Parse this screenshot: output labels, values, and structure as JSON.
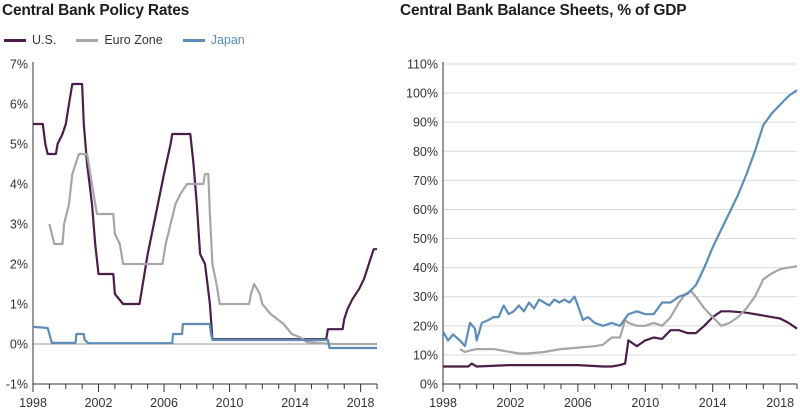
{
  "chart_data": [
    {
      "type": "line",
      "title": "Central Bank Policy Rates",
      "xlabel": "",
      "ylabel": "",
      "xlim": [
        1998,
        2019
      ],
      "ylim": [
        -1,
        7
      ],
      "yticks": [
        "7%",
        "6%",
        "5%",
        "4%",
        "3%",
        "2%",
        "1%",
        "0%",
        "-1%"
      ],
      "xticks": [
        "1998",
        "2002",
        "2006",
        "2010",
        "2014",
        "2018"
      ],
      "grid": false,
      "legend_position": "top-left",
      "series": [
        {
          "name": "U.S.",
          "color": "#4a1e48",
          "points": [
            [
              1998,
              5.5
            ],
            [
              1998.6,
              5.5
            ],
            [
              1998.75,
              5.0
            ],
            [
              1998.9,
              4.75
            ],
            [
              1999.4,
              4.75
            ],
            [
              1999.5,
              5.0
            ],
            [
              1999.8,
              5.25
            ],
            [
              2000.0,
              5.5
            ],
            [
              2000.2,
              6.0
            ],
            [
              2000.4,
              6.5
            ],
            [
              2001.0,
              6.5
            ],
            [
              2001.1,
              5.5
            ],
            [
              2001.3,
              4.5
            ],
            [
              2001.6,
              3.5
            ],
            [
              2001.8,
              2.5
            ],
            [
              2002.0,
              1.75
            ],
            [
              2002.9,
              1.75
            ],
            [
              2003.0,
              1.25
            ],
            [
              2003.5,
              1.0
            ],
            [
              2004.5,
              1.0
            ],
            [
              2004.7,
              1.5
            ],
            [
              2005.0,
              2.25
            ],
            [
              2005.5,
              3.25
            ],
            [
              2006.0,
              4.25
            ],
            [
              2006.4,
              5.0
            ],
            [
              2006.5,
              5.25
            ],
            [
              2007.6,
              5.25
            ],
            [
              2007.8,
              4.5
            ],
            [
              2008.0,
              3.5
            ],
            [
              2008.2,
              2.25
            ],
            [
              2008.5,
              2.0
            ],
            [
              2008.8,
              1.0
            ],
            [
              2008.95,
              0.12
            ],
            [
              2015.9,
              0.12
            ],
            [
              2016.0,
              0.37
            ],
            [
              2016.9,
              0.37
            ],
            [
              2017.0,
              0.62
            ],
            [
              2017.2,
              0.87
            ],
            [
              2017.5,
              1.12
            ],
            [
              2017.9,
              1.37
            ],
            [
              2018.2,
              1.62
            ],
            [
              2018.4,
              1.87
            ],
            [
              2018.6,
              2.12
            ],
            [
              2018.8,
              2.37
            ],
            [
              2019.0,
              2.37
            ]
          ]
        },
        {
          "name": "Euro Zone",
          "color": "#a6a6a6",
          "points": [
            [
              1999.0,
              3.0
            ],
            [
              1999.3,
              2.5
            ],
            [
              1999.8,
              2.5
            ],
            [
              1999.9,
              3.0
            ],
            [
              2000.2,
              3.5
            ],
            [
              2000.4,
              4.25
            ],
            [
              2000.6,
              4.5
            ],
            [
              2000.8,
              4.75
            ],
            [
              2001.3,
              4.75
            ],
            [
              2001.5,
              4.25
            ],
            [
              2001.7,
              3.75
            ],
            [
              2001.9,
              3.25
            ],
            [
              2002.9,
              3.25
            ],
            [
              2003.0,
              2.75
            ],
            [
              2003.3,
              2.5
            ],
            [
              2003.5,
              2.0
            ],
            [
              2005.9,
              2.0
            ],
            [
              2006.1,
              2.5
            ],
            [
              2006.4,
              3.0
            ],
            [
              2006.7,
              3.5
            ],
            [
              2007.0,
              3.75
            ],
            [
              2007.4,
              4.0
            ],
            [
              2008.4,
              4.0
            ],
            [
              2008.5,
              4.25
            ],
            [
              2008.7,
              4.25
            ],
            [
              2008.8,
              3.25
            ],
            [
              2008.95,
              2.0
            ],
            [
              2009.2,
              1.5
            ],
            [
              2009.4,
              1.0
            ],
            [
              2011.2,
              1.0
            ],
            [
              2011.3,
              1.25
            ],
            [
              2011.5,
              1.5
            ],
            [
              2011.85,
              1.25
            ],
            [
              2012.0,
              1.0
            ],
            [
              2012.5,
              0.75
            ],
            [
              2013.3,
              0.5
            ],
            [
              2013.8,
              0.25
            ],
            [
              2014.4,
              0.15
            ],
            [
              2014.7,
              0.05
            ],
            [
              2016.2,
              0.0
            ],
            [
              2019.0,
              0.0
            ]
          ]
        },
        {
          "name": "Japan",
          "color": "#5b8db8",
          "points": [
            [
              1998,
              0.43
            ],
            [
              1998.9,
              0.4
            ],
            [
              1999.15,
              0.03
            ],
            [
              2000.6,
              0.03
            ],
            [
              2000.65,
              0.25
            ],
            [
              2001.1,
              0.25
            ],
            [
              2001.15,
              0.1
            ],
            [
              2001.4,
              0.02
            ],
            [
              2006.5,
              0.02
            ],
            [
              2006.55,
              0.25
            ],
            [
              2007.1,
              0.25
            ],
            [
              2007.15,
              0.5
            ],
            [
              2008.8,
              0.5
            ],
            [
              2008.85,
              0.3
            ],
            [
              2008.95,
              0.1
            ],
            [
              2016.0,
              0.1
            ],
            [
              2016.1,
              -0.1
            ],
            [
              2019.0,
              -0.1
            ]
          ]
        }
      ]
    },
    {
      "type": "line",
      "title": "Central Bank Balance Sheets, % of GDP",
      "xlabel": "",
      "ylabel": "",
      "xlim": [
        1998,
        2019
      ],
      "ylim": [
        0,
        110
      ],
      "yticks": [
        "110%",
        "100%",
        "90%",
        "80%",
        "70%",
        "60%",
        "50%",
        "40%",
        "30%",
        "20%",
        "10%",
        "0%"
      ],
      "xticks": [
        "1998",
        "2002",
        "2006",
        "2010",
        "2014",
        "2018"
      ],
      "grid": true,
      "series": [
        {
          "color": "#4a1e48",
          "points": [
            [
              1998,
              6
            ],
            [
              1999.5,
              6
            ],
            [
              1999.7,
              7
            ],
            [
              2000,
              6
            ],
            [
              2002,
              6.5
            ],
            [
              2004,
              6.5
            ],
            [
              2006,
              6.5
            ],
            [
              2007.5,
              6
            ],
            [
              2008,
              6
            ],
            [
              2008.5,
              6.5
            ],
            [
              2008.8,
              7
            ],
            [
              2009.0,
              15
            ],
            [
              2009.5,
              13
            ],
            [
              2010.0,
              15
            ],
            [
              2010.5,
              16
            ],
            [
              2011.0,
              15.5
            ],
            [
              2011.5,
              18.5
            ],
            [
              2012.0,
              18.5
            ],
            [
              2012.5,
              17.5
            ],
            [
              2013.0,
              17.5
            ],
            [
              2013.5,
              20
            ],
            [
              2014.0,
              23
            ],
            [
              2014.5,
              25
            ],
            [
              2015.0,
              25
            ],
            [
              2016.0,
              24.5
            ],
            [
              2017.0,
              23.5
            ],
            [
              2017.5,
              23
            ],
            [
              2018.0,
              22.5
            ],
            [
              2018.5,
              21
            ],
            [
              2019.0,
              19
            ]
          ]
        },
        {
          "color": "#a6a6a6",
          "points": [
            [
              1999.0,
              12
            ],
            [
              1999.3,
              11
            ],
            [
              1999.6,
              11.5
            ],
            [
              2000,
              12
            ],
            [
              2001,
              12
            ],
            [
              2001.5,
              11.5
            ],
            [
              2002,
              11
            ],
            [
              2002.5,
              10.5
            ],
            [
              2003,
              10.5
            ],
            [
              2004,
              11
            ],
            [
              2004.5,
              11.5
            ],
            [
              2005,
              12
            ],
            [
              2006,
              12.5
            ],
            [
              2007,
              13
            ],
            [
              2007.5,
              13.5
            ],
            [
              2008.0,
              16
            ],
            [
              2008.5,
              16
            ],
            [
              2008.8,
              22
            ],
            [
              2009.0,
              21
            ],
            [
              2009.5,
              20
            ],
            [
              2010.0,
              20
            ],
            [
              2010.5,
              21
            ],
            [
              2011.0,
              20
            ],
            [
              2011.5,
              23
            ],
            [
              2012.0,
              28
            ],
            [
              2012.4,
              31
            ],
            [
              2012.7,
              32
            ],
            [
              2013.0,
              30
            ],
            [
              2013.5,
              26
            ],
            [
              2014.0,
              23
            ],
            [
              2014.5,
              20
            ],
            [
              2015.0,
              21
            ],
            [
              2015.5,
              23
            ],
            [
              2016.0,
              26
            ],
            [
              2016.5,
              30
            ],
            [
              2017.0,
              36
            ],
            [
              2017.5,
              38
            ],
            [
              2018.0,
              39.5
            ],
            [
              2018.5,
              40
            ],
            [
              2019.0,
              40.5
            ]
          ]
        },
        {
          "color": "#5b8db8",
          "points": [
            [
              1998,
              18
            ],
            [
              1998.3,
              15
            ],
            [
              1998.6,
              17
            ],
            [
              1999,
              15
            ],
            [
              1999.3,
              13
            ],
            [
              1999.6,
              21
            ],
            [
              1999.9,
              19
            ],
            [
              2000,
              15
            ],
            [
              2000.3,
              21
            ],
            [
              2000.7,
              22
            ],
            [
              2001,
              23
            ],
            [
              2001.3,
              23
            ],
            [
              2001.6,
              27
            ],
            [
              2001.9,
              24
            ],
            [
              2002.2,
              25
            ],
            [
              2002.5,
              27
            ],
            [
              2002.8,
              25
            ],
            [
              2003.1,
              28
            ],
            [
              2003.4,
              26
            ],
            [
              2003.7,
              29
            ],
            [
              2004,
              28
            ],
            [
              2004.3,
              27
            ],
            [
              2004.6,
              29
            ],
            [
              2004.9,
              28
            ],
            [
              2005.2,
              29
            ],
            [
              2005.5,
              28
            ],
            [
              2005.8,
              30
            ],
            [
              2006,
              27
            ],
            [
              2006.3,
              22
            ],
            [
              2006.6,
              23
            ],
            [
              2007,
              21
            ],
            [
              2007.5,
              20
            ],
            [
              2008,
              21
            ],
            [
              2008.5,
              20
            ],
            [
              2009,
              24
            ],
            [
              2009.5,
              25
            ],
            [
              2010,
              24
            ],
            [
              2010.5,
              24
            ],
            [
              2011,
              28
            ],
            [
              2011.5,
              28
            ],
            [
              2012,
              30
            ],
            [
              2012.5,
              31
            ],
            [
              2013,
              34
            ],
            [
              2013.5,
              40
            ],
            [
              2014.0,
              47
            ],
            [
              2014.5,
              53
            ],
            [
              2015.0,
              59
            ],
            [
              2015.5,
              65
            ],
            [
              2016.0,
              72
            ],
            [
              2016.5,
              80
            ],
            [
              2017.0,
              89
            ],
            [
              2017.5,
              93
            ],
            [
              2018.0,
              96
            ],
            [
              2018.5,
              99
            ],
            [
              2019.0,
              101
            ]
          ]
        }
      ]
    }
  ]
}
